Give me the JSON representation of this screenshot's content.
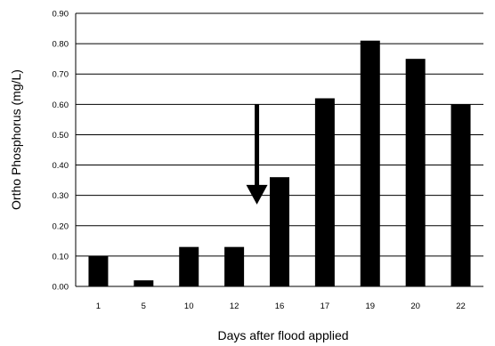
{
  "chart_data": {
    "type": "bar",
    "categories": [
      "1",
      "5",
      "10",
      "12",
      "16",
      "17",
      "19",
      "20",
      "22"
    ],
    "values": [
      0.1,
      0.02,
      0.13,
      0.13,
      0.36,
      0.62,
      0.81,
      0.75,
      0.6
    ],
    "xlabel": "Days after flood applied",
    "ylabel": "Ortho Phosphorus (mg/L)",
    "ylim": [
      0,
      0.9
    ],
    "y_ticks": [
      "0.00",
      "0.10",
      "0.20",
      "0.30",
      "0.40",
      "0.50",
      "0.60",
      "0.70",
      "0.80",
      "0.90"
    ],
    "grid": "horizontal",
    "colors": {
      "bar": "#000000",
      "grid": "#000000",
      "background": "#ffffff"
    },
    "annotations": [
      {
        "type": "arrow",
        "direction": "down",
        "x_category": "12-16",
        "y_start": 0.6,
        "y_end": 0.27
      }
    ]
  }
}
